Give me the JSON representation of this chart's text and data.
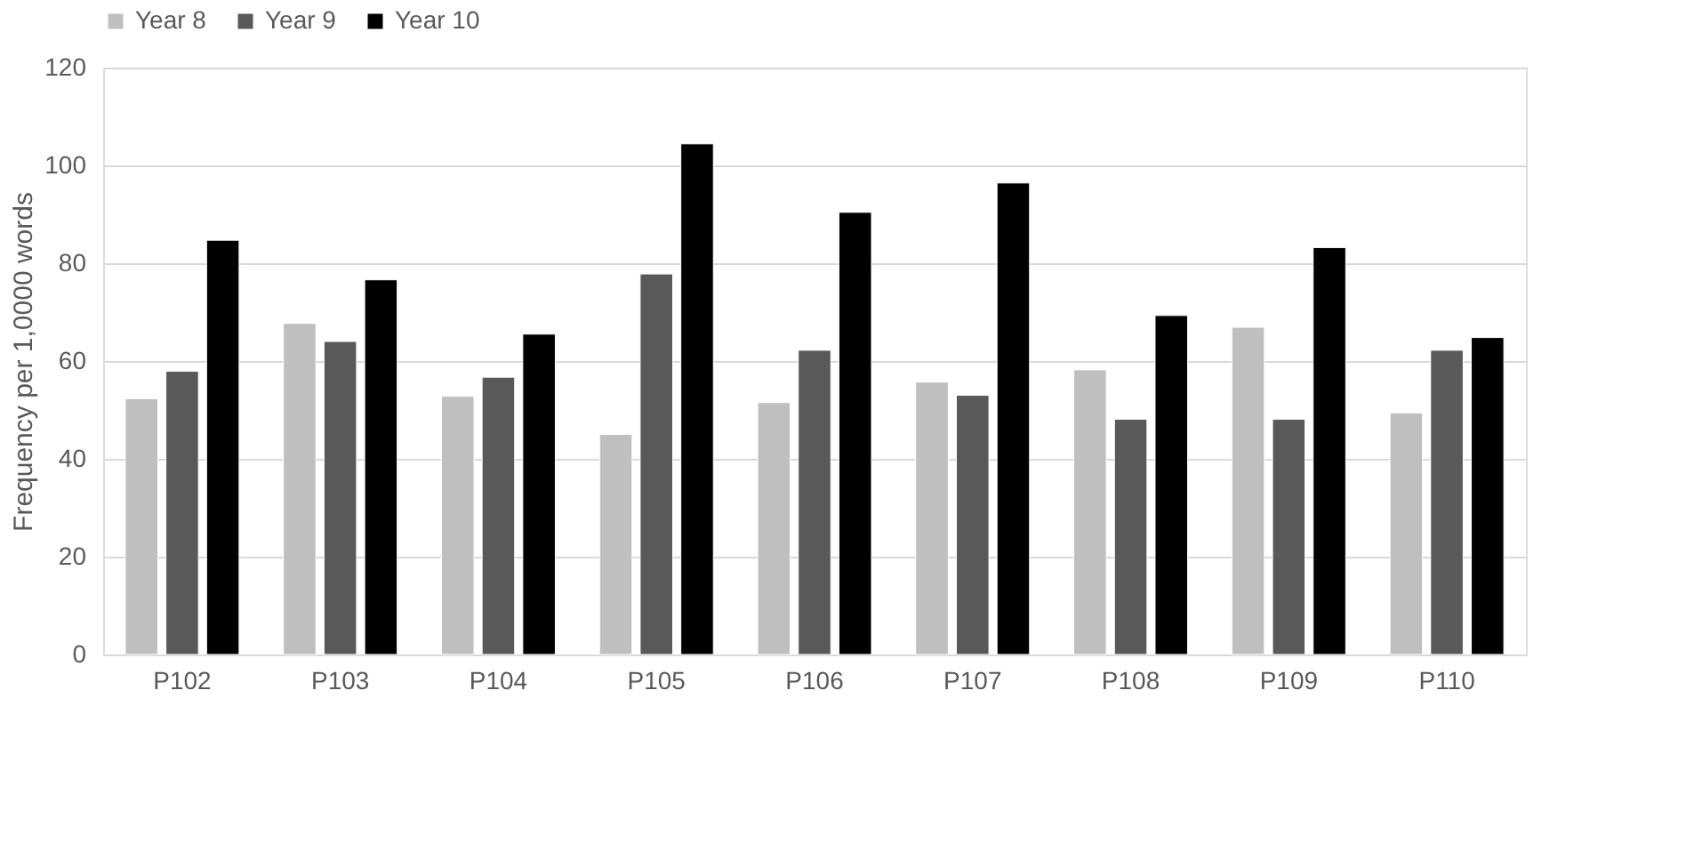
{
  "chart_data": {
    "type": "bar",
    "ylabel": "Frequency per 1,0000 words",
    "categories": [
      "P102",
      "P103",
      "P104",
      "P105",
      "P106",
      "P107",
      "P108",
      "P109",
      "P110"
    ],
    "series": [
      {
        "name": "Year 8",
        "color": "#bfbfbf",
        "values": [
          52.3,
          67.7,
          52.8,
          45,
          51.5,
          55.7,
          58.2,
          66.9,
          49.4
        ]
      },
      {
        "name": "Year 9",
        "color": "#595959",
        "values": [
          57.9,
          64,
          56.7,
          77.8,
          62.2,
          53,
          48.1,
          48.1,
          62.2
        ]
      },
      {
        "name": "Year 10",
        "color": "#000000",
        "values": [
          84.7,
          76.6,
          65.5,
          104.4,
          90.4,
          96.4,
          69.3,
          83.2,
          64.8
        ]
      }
    ],
    "ylim": [
      0,
      120
    ],
    "yticks": [
      0,
      20,
      40,
      60,
      80,
      100,
      120
    ],
    "grid": "y",
    "legend": "top"
  }
}
